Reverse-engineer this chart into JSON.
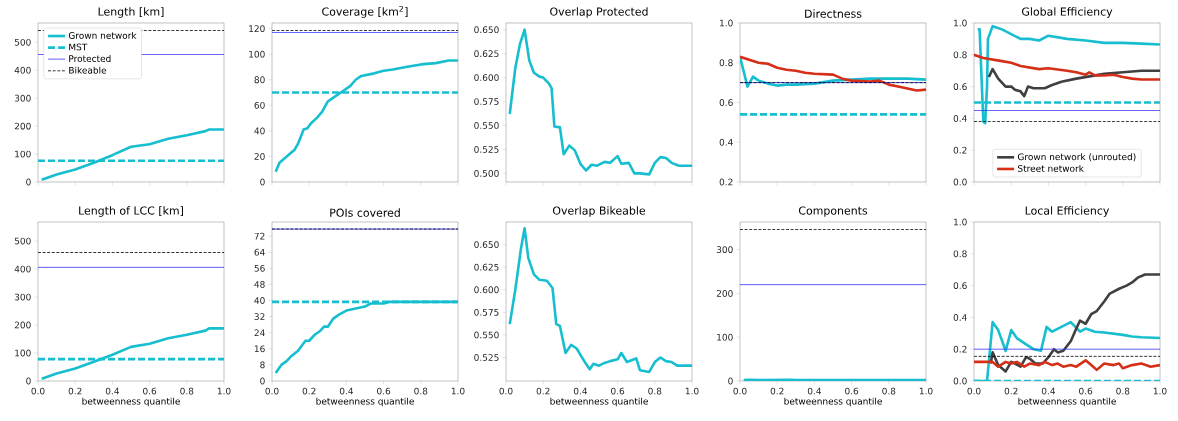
{
  "chart_data": [
    {
      "type": "line",
      "title": "Length [km]",
      "xlim": [
        0,
        1
      ],
      "xticks": [
        {
          "value": 0,
          "label": null
        },
        {
          "value": 0.2,
          "label": null
        },
        {
          "value": 0.4,
          "label": null
        },
        {
          "value": 0.6,
          "label": null
        },
        {
          "value": 0.8,
          "label": null
        },
        {
          "value": 1,
          "label": null
        }
      ],
      "ylim": [
        0,
        569
      ],
      "yticks": [
        0,
        100,
        200,
        300,
        400,
        500
      ],
      "tick_labels": "y",
      "legend": "top left",
      "series": [
        {
          "name": "Grown network",
          "color": "#17becf",
          "x": [
            0.02,
            0.1,
            0.2,
            0.3,
            0.4,
            0.5,
            0.6,
            0.7,
            0.8,
            0.9,
            0.92,
            1
          ],
          "values": [
            8,
            27,
            45,
            69,
            96,
            126,
            135,
            155,
            167,
            182,
            188,
            188
          ]
        },
        {
          "name": "MST",
          "color": "#17becf",
          "line_style": "dashed",
          "x": [
            0,
            1
          ],
          "values": [
            76,
            76
          ]
        }
      ],
      "ref_lines": [
        {
          "axis": "y",
          "value": 456,
          "label": "Protected",
          "color": "#3333ff"
        },
        {
          "axis": "y",
          "value": 542,
          "label": "Bikeable",
          "color": "#000000",
          "line_style": "dashed"
        }
      ]
    },
    {
      "type": "line",
      "title": "Coverage [km$^{2}$]",
      "xlim": [
        0,
        1
      ],
      "xticks": [
        {
          "value": 0,
          "label": null
        },
        {
          "value": 0.2,
          "label": null
        },
        {
          "value": 0.4,
          "label": null
        },
        {
          "value": 0.6,
          "label": null
        },
        {
          "value": 0.8,
          "label": null
        },
        {
          "value": 1,
          "label": null
        }
      ],
      "ylim": [
        0,
        124.4
      ],
      "yticks": [
        0,
        20,
        40,
        60,
        80,
        100,
        120
      ],
      "tick_labels": "y",
      "series": [
        {
          "color": "#17becf",
          "x": [
            0.02,
            0.04,
            0.08,
            0.12,
            0.14,
            0.17,
            0.19,
            0.21,
            0.24,
            0.27,
            0.3,
            0.33,
            0.37,
            0.42,
            0.45,
            0.48,
            0.55,
            0.6,
            0.65,
            0.72,
            0.8,
            0.88,
            0.95,
            1
          ],
          "values": [
            8,
            15,
            20,
            25,
            30,
            41,
            42,
            46,
            50,
            55,
            63,
            66,
            70,
            75,
            80,
            83,
            85,
            87,
            88,
            90,
            92,
            93,
            95,
            95
          ]
        },
        {
          "color": "#17becf",
          "line_style": "dashed",
          "x": [
            0,
            1
          ],
          "values": [
            70,
            70
          ]
        }
      ],
      "ref_lines": [
        {
          "axis": "y",
          "value": 117,
          "color": "#3333ff"
        },
        {
          "axis": "y",
          "value": 118.5,
          "color": "#000000",
          "line_style": "dashed"
        }
      ]
    },
    {
      "type": "line",
      "title": "Overlap Protected",
      "xlim": [
        0,
        1
      ],
      "xticks": [
        {
          "value": 0,
          "label": null
        },
        {
          "value": 0.2,
          "label": null
        },
        {
          "value": 0.4,
          "label": null
        },
        {
          "value": 0.6,
          "label": null
        },
        {
          "value": 0.8,
          "label": null
        },
        {
          "value": 1,
          "label": null
        }
      ],
      "ylim": [
        0.491,
        0.657
      ],
      "yticks": [
        {
          "value": 0.5,
          "label": "0.500"
        },
        0.525,
        {
          "value": 0.55,
          "label": "0.550"
        },
        0.575,
        {
          "value": 0.6,
          "label": "0.600"
        },
        0.625,
        {
          "value": 0.65,
          "label": "0.650"
        }
      ],
      "tick_labels": "y",
      "series": [
        {
          "color": "#17becf",
          "x": [
            0.02,
            0.05,
            0.075,
            0.1,
            0.125,
            0.15,
            0.18,
            0.2,
            0.23,
            0.245,
            0.26,
            0.29,
            0.31,
            0.34,
            0.37,
            0.4,
            0.43,
            0.46,
            0.49,
            0.53,
            0.56,
            0.6,
            0.62,
            0.66,
            0.69,
            0.72,
            0.77,
            0.8,
            0.83,
            0.86,
            0.89,
            0.93,
            1
          ],
          "values": [
            0.562,
            0.61,
            0.635,
            0.65,
            0.618,
            0.605,
            0.601,
            0.6,
            0.594,
            0.589,
            0.549,
            0.548,
            0.52,
            0.529,
            0.524,
            0.51,
            0.503,
            0.509,
            0.508,
            0.512,
            0.511,
            0.518,
            0.51,
            0.511,
            0.5,
            0.5,
            0.499,
            0.511,
            0.517,
            0.516,
            0.511,
            0.508,
            0.508
          ]
        }
      ]
    },
    {
      "type": "line",
      "title": "Directness",
      "xlim": [
        0,
        1
      ],
      "xticks": [
        {
          "value": 0,
          "label": null
        },
        {
          "value": 0.2,
          "label": null
        },
        {
          "value": 0.4,
          "label": null
        },
        {
          "value": 0.6,
          "label": null
        },
        {
          "value": 0.8,
          "label": null
        },
        {
          "value": 1,
          "label": null
        }
      ],
      "ylim": [
        0.2,
        1
      ],
      "yticks": [
        0.2,
        0.4,
        0.6,
        0.8,
        {
          "value": 1,
          "label": "1.0"
        }
      ],
      "tick_labels": "y",
      "series": [
        {
          "color": "#17becf",
          "x": [
            0,
            0.04,
            0.07,
            0.1,
            0.15,
            0.2,
            0.25,
            0.3,
            0.4,
            0.5,
            0.6,
            0.7,
            0.8,
            0.9,
            1
          ],
          "values": [
            0.83,
            0.68,
            0.73,
            0.71,
            0.695,
            0.685,
            0.69,
            0.69,
            0.695,
            0.71,
            0.715,
            0.72,
            0.72,
            0.72,
            0.715
          ]
        },
        {
          "color": "#d62f18",
          "x": [
            0,
            0.05,
            0.1,
            0.15,
            0.2,
            0.25,
            0.3,
            0.35,
            0.4,
            0.5,
            0.55,
            0.6,
            0.7,
            0.75,
            0.8,
            0.85,
            0.9,
            0.95,
            1
          ],
          "values": [
            0.83,
            0.815,
            0.8,
            0.795,
            0.775,
            0.765,
            0.76,
            0.75,
            0.745,
            0.74,
            0.72,
            0.71,
            0.705,
            0.71,
            0.69,
            0.68,
            0.67,
            0.66,
            0.665
          ]
        },
        {
          "color": "#17becf",
          "line_style": "dashed",
          "x": [
            0,
            1
          ],
          "values": [
            0.54,
            0.54
          ]
        }
      ],
      "ref_lines": [
        {
          "axis": "y",
          "value": 0.7,
          "color": "#3333ff"
        },
        {
          "axis": "y",
          "value": 0.7,
          "color": "#000000",
          "line_style": "dashed"
        }
      ]
    },
    {
      "type": "line",
      "title": "Global Efficiency",
      "xlim": [
        0,
        1
      ],
      "xticks": [
        {
          "value": 0,
          "label": null
        },
        {
          "value": 0.2,
          "label": null
        },
        {
          "value": 0.4,
          "label": null
        },
        {
          "value": 0.6,
          "label": null
        },
        {
          "value": 0.8,
          "label": null
        },
        {
          "value": 1,
          "label": null
        }
      ],
      "ylim": [
        0,
        1
      ],
      "yticks": [
        {
          "value": 0,
          "label": "0.0"
        },
        0.2,
        0.4,
        0.6,
        0.8,
        {
          "value": 1,
          "label": "1.0"
        }
      ],
      "tick_labels": "y",
      "legend": "bottom",
      "series": [
        {
          "color": "#17becf",
          "x": [
            0.02,
            0.03,
            0.05,
            0.06,
            0.07,
            0.075,
            0.1,
            0.15,
            0.2,
            0.25,
            0.3,
            0.35,
            0.4,
            0.5,
            0.6,
            0.7,
            0.8,
            0.9,
            1
          ],
          "values": [
            0.96,
            0.96,
            0.38,
            0.37,
            0.6,
            0.9,
            0.98,
            0.96,
            0.93,
            0.9,
            0.9,
            0.89,
            0.92,
            0.9,
            0.89,
            0.875,
            0.875,
            0.87,
            0.865
          ]
        },
        {
          "name": "Grown network (unrouted)",
          "color": "#404040",
          "x": [
            0.08,
            0.1,
            0.13,
            0.17,
            0.2,
            0.22,
            0.25,
            0.27,
            0.29,
            0.32,
            0.38,
            0.42,
            0.47,
            0.55,
            0.6,
            0.7,
            0.8,
            0.9,
            1
          ],
          "values": [
            0.66,
            0.71,
            0.65,
            0.6,
            0.6,
            0.58,
            0.57,
            0.54,
            0.6,
            0.59,
            0.59,
            0.61,
            0.63,
            0.65,
            0.66,
            0.68,
            0.69,
            0.7,
            0.7
          ]
        },
        {
          "name": "Street network",
          "color": "#d62f18",
          "x": [
            0,
            0.05,
            0.1,
            0.15,
            0.2,
            0.25,
            0.3,
            0.35,
            0.4,
            0.5,
            0.55,
            0.6,
            0.62,
            0.65,
            0.7,
            0.75,
            0.8,
            0.85,
            0.9,
            1
          ],
          "values": [
            0.8,
            0.78,
            0.77,
            0.76,
            0.75,
            0.73,
            0.72,
            0.71,
            0.715,
            0.7,
            0.69,
            0.675,
            0.69,
            0.67,
            0.67,
            0.675,
            0.66,
            0.65,
            0.645,
            0.645
          ]
        },
        {
          "color": "#17becf",
          "line_style": "dashed",
          "x": [
            0,
            1
          ],
          "values": [
            0.5,
            0.5
          ]
        }
      ],
      "ref_lines": [
        {
          "axis": "y",
          "value": 0.45,
          "color": "#3333ff"
        },
        {
          "axis": "y",
          "value": 0.38,
          "color": "#000000",
          "line_style": "dashed"
        }
      ]
    },
    {
      "type": "line",
      "title": "Length of LCC [km]",
      "xlabel": "betweenness quantile",
      "xlim": [
        0,
        1
      ],
      "xticks": [
        {
          "value": 0,
          "label": "0.0"
        },
        0.2,
        0.4,
        0.6,
        0.8,
        {
          "value": 1,
          "label": "1.0"
        }
      ],
      "ylim": [
        0,
        568
      ],
      "yticks": [
        0,
        100,
        200,
        300,
        400,
        500
      ],
      "series": [
        {
          "color": "#17becf",
          "x": [
            0.02,
            0.1,
            0.2,
            0.3,
            0.4,
            0.5,
            0.6,
            0.7,
            0.8,
            0.9,
            0.92,
            1
          ],
          "values": [
            8,
            27,
            45,
            69,
            94,
            122,
            133,
            153,
            165,
            180,
            188,
            188
          ]
        },
        {
          "color": "#17becf",
          "line_style": "dashed",
          "x": [
            0,
            1
          ],
          "values": [
            78,
            78
          ]
        }
      ],
      "ref_lines": [
        {
          "axis": "y",
          "value": 406,
          "color": "#3333ff"
        },
        {
          "axis": "y",
          "value": 459,
          "color": "#000000",
          "line_style": "dashed"
        }
      ]
    },
    {
      "type": "line",
      "title": "POIs covered",
      "xlabel": "betweenness quantile",
      "xlim": [
        0,
        1
      ],
      "xticks": [
        {
          "value": 0,
          "label": "0.0"
        },
        0.2,
        0.4,
        0.6,
        0.8,
        {
          "value": 1,
          "label": "1.0"
        }
      ],
      "ylim": [
        0,
        79
      ],
      "yticks": [
        0,
        8,
        16,
        24,
        32,
        40,
        48,
        56,
        64,
        72
      ],
      "series": [
        {
          "color": "#17becf",
          "x": [
            0.02,
            0.05,
            0.08,
            0.1,
            0.14,
            0.18,
            0.2,
            0.23,
            0.26,
            0.28,
            0.3,
            0.33,
            0.36,
            0.4,
            0.45,
            0.5,
            0.53,
            0.6,
            0.63,
            1
          ],
          "values": [
            4,
            8,
            10,
            12,
            15,
            20,
            20,
            23,
            25,
            27,
            27,
            31,
            33,
            35,
            36,
            37,
            38.5,
            38.5,
            39.3,
            39.3
          ]
        },
        {
          "color": "#17becf",
          "line_style": "dashed",
          "x": [
            0,
            1
          ],
          "values": [
            39.3,
            39.3
          ]
        }
      ],
      "ref_lines": [
        {
          "axis": "y",
          "value": 75.5,
          "color": "#3333ff"
        },
        {
          "axis": "y",
          "value": 75.5,
          "color": "#000000",
          "line_style": "dashed"
        }
      ]
    },
    {
      "type": "line",
      "title": "Overlap Bikeable",
      "xlabel": "betweenness quantile",
      "xlim": [
        0,
        1
      ],
      "xticks": [
        {
          "value": 0,
          "label": "0.0"
        },
        0.2,
        0.4,
        0.6,
        0.8,
        {
          "value": 1,
          "label": "1.0"
        }
      ],
      "ylim": [
        0.499,
        0.675
      ],
      "yticks": [
        0.525,
        {
          "value": 0.55,
          "label": "0.550"
        },
        0.575,
        {
          "value": 0.6,
          "label": "0.600"
        },
        0.625,
        {
          "value": 0.65,
          "label": "0.650"
        }
      ],
      "series": [
        {
          "color": "#17becf",
          "x": [
            0.02,
            0.05,
            0.08,
            0.1,
            0.12,
            0.15,
            0.18,
            0.22,
            0.25,
            0.27,
            0.29,
            0.32,
            0.35,
            0.38,
            0.4,
            0.43,
            0.45,
            0.47,
            0.5,
            0.53,
            0.56,
            0.6,
            0.62,
            0.65,
            0.7,
            0.72,
            0.77,
            0.8,
            0.83,
            0.86,
            0.89,
            0.92,
            1
          ],
          "values": [
            0.562,
            0.6,
            0.645,
            0.668,
            0.635,
            0.617,
            0.611,
            0.61,
            0.602,
            0.562,
            0.56,
            0.53,
            0.539,
            0.535,
            0.528,
            0.518,
            0.512,
            0.518,
            0.516,
            0.519,
            0.521,
            0.523,
            0.53,
            0.52,
            0.524,
            0.511,
            0.509,
            0.52,
            0.525,
            0.521,
            0.52,
            0.516,
            0.516
          ]
        }
      ]
    },
    {
      "type": "line",
      "title": "Components",
      "xlabel": "betweenness quantile",
      "xlim": [
        0,
        1
      ],
      "xticks": [
        {
          "value": 0,
          "label": "0.0"
        },
        0.2,
        0.4,
        0.6,
        0.8,
        {
          "value": 1,
          "label": "1.0"
        }
      ],
      "ylim": [
        0,
        363
      ],
      "yticks": [
        0,
        100,
        200,
        300
      ],
      "series": [
        {
          "color": "#17becf",
          "x": [
            0.02,
            0.05,
            0.1,
            0.27,
            0.3,
            1
          ],
          "values": [
            2,
            3,
            2,
            3,
            2,
            2
          ]
        }
      ],
      "ref_lines": [
        {
          "axis": "y",
          "value": 220,
          "color": "#3333ff"
        },
        {
          "axis": "y",
          "value": 346,
          "color": "#000000",
          "line_style": "dashed"
        }
      ]
    },
    {
      "type": "line",
      "title": "Local Efficiency",
      "xlabel": "betweenness quantile",
      "xlim": [
        0,
        1
      ],
      "xticks": [
        {
          "value": 0,
          "label": "0.0"
        },
        0.2,
        0.4,
        0.6,
        0.8,
        {
          "value": 1,
          "label": "1.0"
        }
      ],
      "ylim": [
        0,
        1
      ],
      "yticks": [
        {
          "value": 0,
          "label": "0.0"
        },
        0.2,
        0.4,
        0.6,
        0.8,
        {
          "value": 1,
          "label": "1.0"
        }
      ],
      "series": [
        {
          "color": "#17becf",
          "x": [
            0,
            0.07,
            0.1,
            0.13,
            0.17,
            0.2,
            0.23,
            0.28,
            0.32,
            0.36,
            0.39,
            0.42,
            0.47,
            0.52,
            0.57,
            0.6,
            0.65,
            0.7,
            0.8,
            0.85,
            0.9,
            1
          ],
          "values": [
            0,
            0,
            0.37,
            0.32,
            0.19,
            0.32,
            0.27,
            0.23,
            0.2,
            0.19,
            0.34,
            0.31,
            0.34,
            0.37,
            0.31,
            0.33,
            0.31,
            0.305,
            0.29,
            0.28,
            0.275,
            0.27
          ]
        },
        {
          "color": "#404040",
          "x": [
            0.09,
            0.1,
            0.13,
            0.17,
            0.2,
            0.22,
            0.25,
            0.28,
            0.3,
            0.33,
            0.37,
            0.4,
            0.43,
            0.45,
            0.48,
            0.52,
            0.55,
            0.57,
            0.6,
            0.63,
            0.66,
            0.7,
            0.73,
            0.78,
            0.82,
            0.85,
            0.88,
            0.92,
            1
          ],
          "values": [
            0.11,
            0.18,
            0.1,
            0.06,
            0.12,
            0.11,
            0.09,
            0.15,
            0.14,
            0.11,
            0.11,
            0.15,
            0.2,
            0.18,
            0.19,
            0.25,
            0.33,
            0.38,
            0.36,
            0.42,
            0.44,
            0.5,
            0.55,
            0.58,
            0.6,
            0.62,
            0.65,
            0.67,
            0.67
          ]
        },
        {
          "color": "#d62f18",
          "x": [
            0,
            0.07,
            0.1,
            0.13,
            0.17,
            0.2,
            0.23,
            0.27,
            0.3,
            0.35,
            0.38,
            0.42,
            0.45,
            0.48,
            0.52,
            0.55,
            0.6,
            0.63,
            0.66,
            0.7,
            0.75,
            0.78,
            0.8,
            0.85,
            0.9,
            0.95,
            1
          ],
          "values": [
            0.12,
            0.12,
            0.12,
            0.09,
            0.12,
            0.11,
            0.12,
            0.09,
            0.11,
            0.1,
            0.12,
            0.1,
            0.11,
            0.09,
            0.1,
            0.09,
            0.13,
            0.1,
            0.07,
            0.11,
            0.1,
            0.11,
            0.08,
            0.1,
            0.11,
            0.09,
            0.1
          ]
        },
        {
          "color": "#17becf",
          "line_style": "dashed",
          "x": [
            0,
            1
          ],
          "values": [
            0,
            0
          ]
        }
      ],
      "ref_lines": [
        {
          "axis": "y",
          "value": 0.2,
          "color": "#3333ff"
        },
        {
          "axis": "y",
          "value": 0.155,
          "color": "#000000",
          "line_style": "dashed"
        }
      ]
    }
  ]
}
